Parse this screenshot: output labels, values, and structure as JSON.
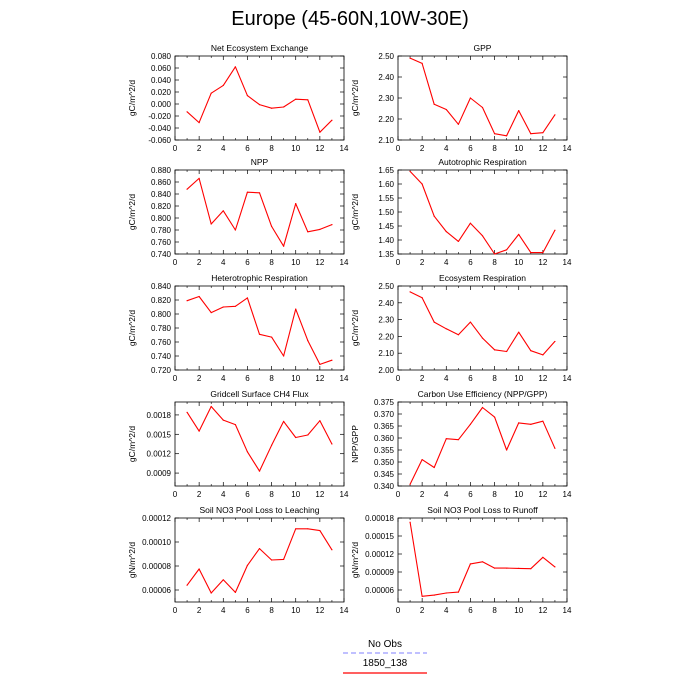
{
  "page": {
    "title": "Europe (45-60N,10W-30E)"
  },
  "legend": {
    "entries": [
      {
        "label": "No Obs",
        "color": "#9a9aff",
        "dash": true
      },
      {
        "label": "1850_138",
        "color": "#ff0000",
        "dash": false
      }
    ]
  },
  "chart_data": [
    {
      "type": "line",
      "title": "Net Ecosystem Exchange",
      "xlabel": "",
      "ylabel": "gC/m^2/d",
      "xlim": [
        0,
        14
      ],
      "ylim": [
        -0.06,
        0.08
      ],
      "xticks": [
        0,
        2,
        4,
        6,
        8,
        10,
        12,
        14
      ],
      "yticks": [
        -0.06,
        -0.04,
        -0.02,
        0.0,
        0.02,
        0.04,
        0.06,
        0.08
      ],
      "ytick_labels": [
        "-0.060",
        "-0.040",
        "-0.020",
        "0.000",
        "0.020",
        "0.040",
        "0.060",
        "0.080"
      ],
      "grid": false,
      "color": "#ff0000",
      "x": [
        1,
        2,
        3,
        4,
        5,
        6,
        7,
        8,
        9,
        10,
        11,
        12,
        13
      ],
      "y": [
        -0.013,
        -0.031,
        0.018,
        0.031,
        0.062,
        0.014,
        -0.001,
        -0.007,
        -0.005,
        0.008,
        0.007,
        -0.047,
        -0.027
      ]
    },
    {
      "type": "line",
      "title": "GPP",
      "xlabel": "",
      "ylabel": "gC/m^2/d",
      "xlim": [
        0,
        14
      ],
      "ylim": [
        2.1,
        2.5
      ],
      "xticks": [
        0,
        2,
        4,
        6,
        8,
        10,
        12,
        14
      ],
      "yticks": [
        2.1,
        2.2,
        2.3,
        2.4,
        2.5
      ],
      "ytick_labels": [
        "2.10",
        "2.20",
        "2.30",
        "2.40",
        "2.50"
      ],
      "grid": false,
      "color": "#ff0000",
      "x": [
        1,
        2,
        3,
        4,
        5,
        6,
        7,
        8,
        9,
        10,
        11,
        12,
        13
      ],
      "y": [
        2.49,
        2.465,
        2.27,
        2.245,
        2.175,
        2.3,
        2.255,
        2.13,
        2.12,
        2.24,
        2.13,
        2.135,
        2.22
      ]
    },
    {
      "type": "line",
      "title": "NPP",
      "xlabel": "",
      "ylabel": "gC/m^2/d",
      "xlim": [
        0,
        14
      ],
      "ylim": [
        0.74,
        0.88
      ],
      "xticks": [
        0,
        2,
        4,
        6,
        8,
        10,
        12,
        14
      ],
      "yticks": [
        0.74,
        0.76,
        0.78,
        0.8,
        0.82,
        0.84,
        0.86,
        0.88
      ],
      "ytick_labels": [
        "0.740",
        "0.760",
        "0.780",
        "0.800",
        "0.820",
        "0.840",
        "0.860",
        "0.880"
      ],
      "grid": false,
      "color": "#ff0000",
      "x": [
        1,
        2,
        3,
        4,
        5,
        6,
        7,
        8,
        9,
        10,
        11,
        12,
        13
      ],
      "y": [
        0.848,
        0.866,
        0.79,
        0.812,
        0.78,
        0.843,
        0.842,
        0.786,
        0.753,
        0.824,
        0.777,
        0.781,
        0.789
      ]
    },
    {
      "type": "line",
      "title": "Autotrophic Respiration",
      "xlabel": "",
      "ylabel": "gC/m^2/d",
      "xlim": [
        0,
        14
      ],
      "ylim": [
        1.35,
        1.65
      ],
      "xticks": [
        0,
        2,
        4,
        6,
        8,
        10,
        12,
        14
      ],
      "yticks": [
        1.35,
        1.4,
        1.45,
        1.5,
        1.55,
        1.6,
        1.65
      ],
      "ytick_labels": [
        "1.35",
        "1.40",
        "1.45",
        "1.50",
        "1.55",
        "1.60",
        "1.65"
      ],
      "grid": false,
      "color": "#ff0000",
      "x": [
        1,
        2,
        3,
        4,
        5,
        6,
        7,
        8,
        9,
        10,
        11,
        12,
        13
      ],
      "y": [
        1.645,
        1.6,
        1.485,
        1.43,
        1.395,
        1.46,
        1.415,
        1.35,
        1.365,
        1.42,
        1.355,
        1.355,
        1.435
      ]
    },
    {
      "type": "line",
      "title": "Heterotrophic Respiration",
      "xlabel": "",
      "ylabel": "gC/m^2/d",
      "xlim": [
        0,
        14
      ],
      "ylim": [
        0.72,
        0.84
      ],
      "xticks": [
        0,
        2,
        4,
        6,
        8,
        10,
        12,
        14
      ],
      "yticks": [
        0.72,
        0.74,
        0.76,
        0.78,
        0.8,
        0.82,
        0.84
      ],
      "ytick_labels": [
        "0.720",
        "0.740",
        "0.760",
        "0.780",
        "0.800",
        "0.820",
        "0.840"
      ],
      "grid": false,
      "color": "#ff0000",
      "x": [
        1,
        2,
        3,
        4,
        5,
        6,
        7,
        8,
        9,
        10,
        11,
        12,
        13
      ],
      "y": [
        0.819,
        0.825,
        0.802,
        0.81,
        0.811,
        0.823,
        0.771,
        0.767,
        0.74,
        0.807,
        0.762,
        0.728,
        0.734
      ]
    },
    {
      "type": "line",
      "title": "Ecosystem Respiration",
      "xlabel": "",
      "ylabel": "gC/m^2/d",
      "xlim": [
        0,
        14
      ],
      "ylim": [
        2.0,
        2.5
      ],
      "xticks": [
        0,
        2,
        4,
        6,
        8,
        10,
        12,
        14
      ],
      "yticks": [
        2.0,
        2.1,
        2.2,
        2.3,
        2.4,
        2.5
      ],
      "ytick_labels": [
        "2.00",
        "2.10",
        "2.20",
        "2.30",
        "2.40",
        "2.50"
      ],
      "grid": false,
      "color": "#ff0000",
      "x": [
        1,
        2,
        3,
        4,
        5,
        6,
        7,
        8,
        9,
        10,
        11,
        12,
        13
      ],
      "y": [
        2.465,
        2.43,
        2.285,
        2.245,
        2.21,
        2.285,
        2.19,
        2.12,
        2.11,
        2.225,
        2.115,
        2.09,
        2.17
      ]
    },
    {
      "type": "line",
      "title": "Gridcell Surface CH4 Flux",
      "xlabel": "",
      "ylabel": "gC/m^2/d",
      "xlim": [
        0,
        14
      ],
      "ylim": [
        0.0007,
        0.002
      ],
      "xticks": [
        0,
        2,
        4,
        6,
        8,
        10,
        12,
        14
      ],
      "yticks": [
        0.0009,
        0.0012,
        0.0015,
        0.0018
      ],
      "ytick_labels": [
        "0.0009",
        "0.0012",
        "0.0015",
        "0.0018"
      ],
      "grid": false,
      "color": "#ff0000",
      "x": [
        1,
        2,
        3,
        4,
        5,
        6,
        7,
        8,
        9,
        10,
        11,
        12,
        13
      ],
      "y": [
        0.00184,
        0.00155,
        0.00193,
        0.00172,
        0.00165,
        0.00123,
        0.00093,
        0.00133,
        0.0017,
        0.00145,
        0.00149,
        0.00171,
        0.00135
      ]
    },
    {
      "type": "line",
      "title": "Carbon Use Efficiency (NPP/GPP)",
      "xlabel": "",
      "ylabel": "NPP/GPP",
      "xlim": [
        0,
        14
      ],
      "ylim": [
        0.34,
        0.375
      ],
      "xticks": [
        0,
        2,
        4,
        6,
        8,
        10,
        12,
        14
      ],
      "yticks": [
        0.34,
        0.345,
        0.35,
        0.355,
        0.36,
        0.365,
        0.37,
        0.375
      ],
      "ytick_labels": [
        "0.340",
        "0.345",
        "0.350",
        "0.355",
        "0.360",
        "0.365",
        "0.370",
        "0.375"
      ],
      "grid": false,
      "color": "#ff0000",
      "x": [
        1,
        2,
        3,
        4,
        5,
        6,
        7,
        8,
        9,
        10,
        11,
        12,
        13
      ],
      "y": [
        0.3407,
        0.351,
        0.3477,
        0.3597,
        0.3593,
        0.3657,
        0.3727,
        0.3687,
        0.355,
        0.3663,
        0.3657,
        0.367,
        0.3557
      ]
    },
    {
      "type": "line",
      "title": "Soil NO3 Pool Loss to Leaching",
      "xlabel": "",
      "ylabel": "gN/m^2/d",
      "xlim": [
        0,
        14
      ],
      "ylim": [
        5e-05,
        0.00012
      ],
      "xticks": [
        0,
        2,
        4,
        6,
        8,
        10,
        12,
        14
      ],
      "yticks": [
        6e-05,
        8e-05,
        0.0001,
        0.00012
      ],
      "ytick_labels": [
        "0.00006",
        "0.00008",
        "0.00010",
        "0.00012"
      ],
      "grid": false,
      "color": "#ff0000",
      "x": [
        1,
        2,
        3,
        4,
        5,
        6,
        7,
        8,
        9,
        10,
        11,
        12,
        13
      ],
      "y": [
        6.4e-05,
        7.75e-05,
        5.75e-05,
        6.85e-05,
        5.8e-05,
        8.05e-05,
        9.45e-05,
        8.5e-05,
        8.55e-05,
        0.000111,
        0.000111,
        0.0001095,
        9.35e-05
      ]
    },
    {
      "type": "line",
      "title": "Soil NO3 Pool Loss to Runoff",
      "xlabel": "",
      "ylabel": "gN/m^2/d",
      "xlim": [
        0,
        14
      ],
      "ylim": [
        4e-05,
        0.00018
      ],
      "xticks": [
        0,
        2,
        4,
        6,
        8,
        10,
        12,
        14
      ],
      "yticks": [
        6e-05,
        9e-05,
        0.00012,
        0.00015,
        0.00018
      ],
      "ytick_labels": [
        "0.00006",
        "0.00009",
        "0.00012",
        "0.00015",
        "0.00018"
      ],
      "grid": false,
      "color": "#ff0000",
      "x": [
        1,
        2,
        3,
        4,
        5,
        6,
        7,
        8,
        9,
        10,
        11,
        12,
        13
      ],
      "y": [
        0.000173,
        4.95e-05,
        5.15e-05,
        5.5e-05,
        5.65e-05,
        0.0001035,
        0.000107,
        9.65e-05,
        9.65e-05,
        9.6e-05,
        9.55e-05,
        0.0001145,
        9.85e-05
      ]
    }
  ]
}
